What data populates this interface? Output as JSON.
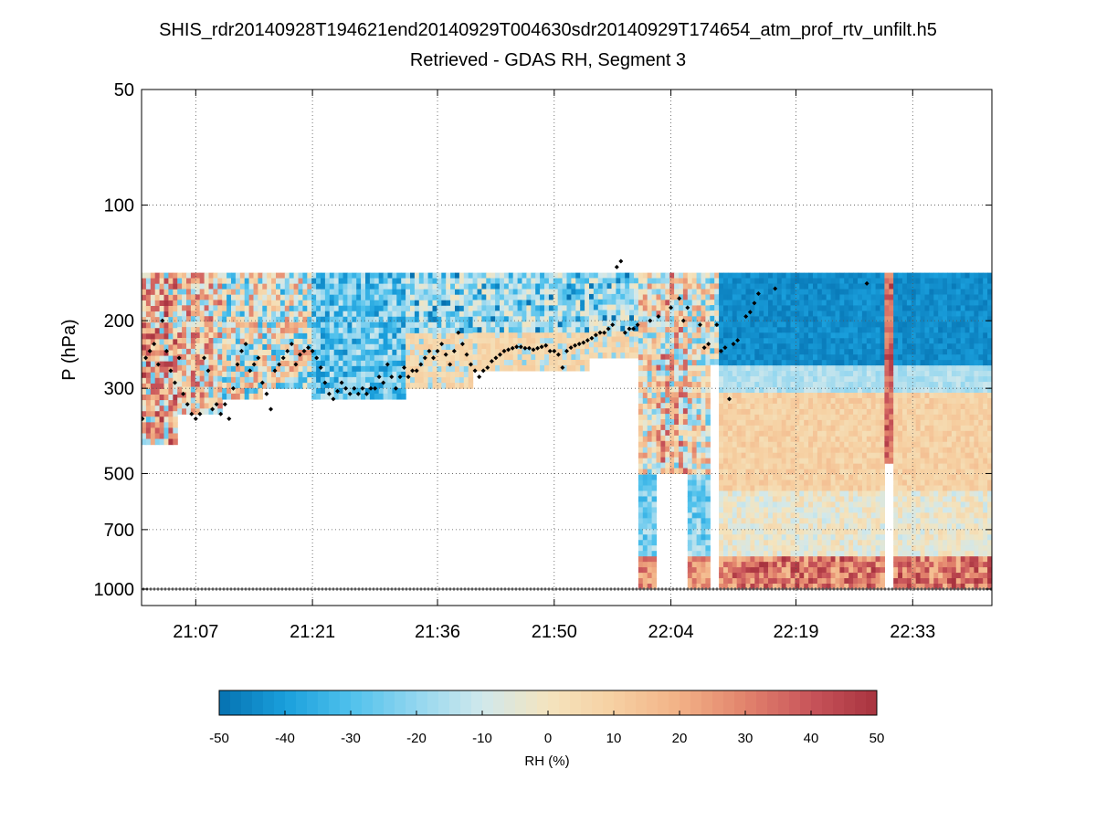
{
  "chart_data": {
    "type": "heatmap",
    "title": "SHIS_rdr20140928T194621end20140929T004630sdr20140929T174654_atm_prof_rtv_unfilt.h5",
    "subtitle": "Retrieved - GDAS RH, Segment 3",
    "ylabel": "P (hPa)",
    "y_scale": "log",
    "y_inverted": true,
    "ylim": [
      50,
      1000
    ],
    "y_ticks": [
      50,
      100,
      200,
      300,
      500,
      700,
      1000
    ],
    "y_tick_labels": [
      "50",
      "100",
      "200",
      "300",
      "500",
      "700",
      "1000"
    ],
    "xlim_minutes": [
      1260.5,
      1362.5
    ],
    "x_ticks_minutes": [
      1267,
      1281,
      1296,
      1310,
      1324,
      1339,
      1353
    ],
    "x_tick_labels": [
      "21:07",
      "21:21",
      "21:36",
      "21:50",
      "22:04",
      "22:19",
      "22:33"
    ],
    "grid": true,
    "colorbar": {
      "label": "RH (%)",
      "range": [
        -50,
        50
      ],
      "ticks": [
        -50,
        -40,
        -30,
        -20,
        -10,
        0,
        10,
        20,
        30,
        40,
        50
      ],
      "tick_labels": [
        "-50",
        "-40",
        "-30",
        "-20",
        "-10",
        "0",
        "10",
        "20",
        "30",
        "40",
        "50"
      ],
      "colors": [
        "#0571b0",
        "#1a9fdc",
        "#4fc1ec",
        "#93d6ef",
        "#d0e8ec",
        "#f4e4be",
        "#f6d0a2",
        "#f2b186",
        "#e2836c",
        "#c8545a",
        "#a8333f"
      ],
      "placement": "bottom"
    },
    "data_top_pressure": 150,
    "segments": [
      {
        "t0": 1260.5,
        "t1": 1265.0,
        "bottom_p": 420,
        "regime": "warm"
      },
      {
        "t0": 1265.0,
        "t1": 1270.0,
        "bottom_p": 350,
        "regime": "mixed_warm"
      },
      {
        "t0": 1270.0,
        "t1": 1275.0,
        "bottom_p": 320,
        "regime": "mixed"
      },
      {
        "t0": 1275.0,
        "t1": 1281.0,
        "bottom_p": 300,
        "regime": "mixed"
      },
      {
        "t0": 1281.0,
        "t1": 1292.0,
        "bottom_p": 320,
        "regime": "dry"
      },
      {
        "t0": 1292.0,
        "t1": 1300.0,
        "bottom_p": 300,
        "regime": "neutral"
      },
      {
        "t0": 1300.0,
        "t1": 1314.0,
        "bottom_p": 270,
        "regime": "neutral"
      },
      {
        "t0": 1314.0,
        "t1": 1320.0,
        "bottom_p": 250,
        "regime": "neutral"
      },
      {
        "t0": 1320.0,
        "t1": 1322.0,
        "bottom_p": 1000,
        "regime": "column_mixed"
      },
      {
        "t0": 1322.0,
        "t1": 1326.0,
        "bottom_p": 500,
        "regime": "mixed_warm"
      },
      {
        "t0": 1326.0,
        "t1": 1328.5,
        "bottom_p": 1000,
        "regime": "column_mixed"
      },
      {
        "t0": 1328.5,
        "t1": 1330.0,
        "bottom_p": 260,
        "regime": "mixed"
      },
      {
        "t0": 1330.0,
        "t1": 1349.5,
        "bottom_p": 1000,
        "regime": "layered"
      },
      {
        "t0": 1349.5,
        "t1": 1350.5,
        "bottom_p": 470,
        "regime": "warm_band"
      },
      {
        "t0": 1350.5,
        "t1": 1362.5,
        "bottom_p": 1000,
        "regime": "layered"
      }
    ],
    "tropopause_points": [
      [
        1260.6,
        360
      ],
      [
        1261,
        250
      ],
      [
        1261.5,
        240
      ],
      [
        1262,
        230
      ],
      [
        1262.5,
        260
      ],
      [
        1263,
        200
      ],
      [
        1263.5,
        240
      ],
      [
        1264,
        270
      ],
      [
        1264.5,
        290
      ],
      [
        1265,
        250
      ],
      [
        1265.5,
        310
      ],
      [
        1266,
        330
      ],
      [
        1266.5,
        350
      ],
      [
        1267,
        360
      ],
      [
        1267.5,
        350
      ],
      [
        1268,
        250
      ],
      [
        1268.5,
        270
      ],
      [
        1269,
        340
      ],
      [
        1269.5,
        330
      ],
      [
        1270,
        350
      ],
      [
        1270.5,
        330
      ],
      [
        1271,
        360
      ],
      [
        1271.5,
        300
      ],
      [
        1272,
        260
      ],
      [
        1272.5,
        240
      ],
      [
        1273,
        230
      ],
      [
        1273.5,
        270
      ],
      [
        1274,
        260
      ],
      [
        1274.5,
        250
      ],
      [
        1275,
        290
      ],
      [
        1275.5,
        310
      ],
      [
        1276,
        340
      ],
      [
        1276.5,
        270
      ],
      [
        1277,
        260
      ],
      [
        1277.5,
        250
      ],
      [
        1278,
        240
      ],
      [
        1278.5,
        230
      ],
      [
        1279,
        260
      ],
      [
        1279.5,
        245
      ],
      [
        1280,
        240
      ],
      [
        1280.5,
        235
      ],
      [
        1281,
        240
      ],
      [
        1281.5,
        250
      ],
      [
        1282,
        265
      ],
      [
        1282.5,
        290
      ],
      [
        1283,
        310
      ],
      [
        1283.5,
        320
      ],
      [
        1284,
        305
      ],
      [
        1284.5,
        290
      ],
      [
        1285,
        300
      ],
      [
        1285.5,
        310
      ],
      [
        1286,
        300
      ],
      [
        1286.5,
        310
      ],
      [
        1287,
        300
      ],
      [
        1287.5,
        310
      ],
      [
        1288,
        300
      ],
      [
        1288.5,
        300
      ],
      [
        1289,
        280
      ],
      [
        1289.5,
        290
      ],
      [
        1290,
        260
      ],
      [
        1290.5,
        280
      ],
      [
        1291,
        300
      ],
      [
        1291.5,
        280
      ],
      [
        1292,
        265
      ],
      [
        1292.5,
        280
      ],
      [
        1293,
        270
      ],
      [
        1293.5,
        270
      ],
      [
        1294,
        260
      ],
      [
        1294.5,
        250
      ],
      [
        1295,
        240
      ],
      [
        1295.5,
        250
      ],
      [
        1296,
        240
      ],
      [
        1296.5,
        230
      ],
      [
        1297,
        245
      ],
      [
        1297.5,
        260
      ],
      [
        1298,
        240
      ],
      [
        1298.5,
        215
      ],
      [
        1299,
        230
      ],
      [
        1299.5,
        245
      ],
      [
        1300,
        260
      ],
      [
        1300.5,
        270
      ],
      [
        1301,
        280
      ],
      [
        1301.5,
        270
      ],
      [
        1302,
        265
      ],
      [
        1302.5,
        255
      ],
      [
        1303,
        250
      ],
      [
        1303.5,
        245
      ],
      [
        1304,
        240
      ],
      [
        1304.5,
        238
      ],
      [
        1305,
        236
      ],
      [
        1305.5,
        234
      ],
      [
        1306,
        234
      ],
      [
        1306.5,
        236
      ],
      [
        1307,
        236
      ],
      [
        1307.5,
        238
      ],
      [
        1308,
        236
      ],
      [
        1308.5,
        234
      ],
      [
        1309,
        232
      ],
      [
        1309.5,
        240
      ],
      [
        1310,
        240
      ],
      [
        1310.5,
        245
      ],
      [
        1311,
        265
      ],
      [
        1311.5,
        240
      ],
      [
        1312,
        235
      ],
      [
        1312.5,
        232
      ],
      [
        1313,
        230
      ],
      [
        1313.5,
        228
      ],
      [
        1314,
        225
      ],
      [
        1314.5,
        222
      ],
      [
        1315,
        218
      ],
      [
        1315.5,
        215
      ],
      [
        1316,
        215
      ],
      [
        1316.5,
        210
      ],
      [
        1317,
        205
      ],
      [
        1317.5,
        145
      ],
      [
        1318,
        140
      ],
      [
        1318.5,
        215
      ],
      [
        1319,
        210
      ],
      [
        1319.5,
        210
      ],
      [
        1320,
        205
      ],
      [
        1321.5,
        200
      ],
      [
        1322.5,
        195
      ],
      [
        1324,
        185
      ],
      [
        1325,
        175
      ],
      [
        1325.5,
        200
      ],
      [
        1326,
        185
      ],
      [
        1327.5,
        205
      ],
      [
        1328,
        235
      ],
      [
        1328.5,
        230
      ],
      [
        1329.5,
        205
      ],
      [
        1330,
        240
      ],
      [
        1330.5,
        235
      ],
      [
        1331,
        320
      ],
      [
        1331.5,
        230
      ],
      [
        1332,
        225
      ],
      [
        1333,
        195
      ],
      [
        1333.5,
        190
      ],
      [
        1334,
        180
      ],
      [
        1334.5,
        170
      ],
      [
        1336.5,
        165
      ],
      [
        1347.5,
        160
      ]
    ],
    "surface_marker_pressure": 1000
  }
}
